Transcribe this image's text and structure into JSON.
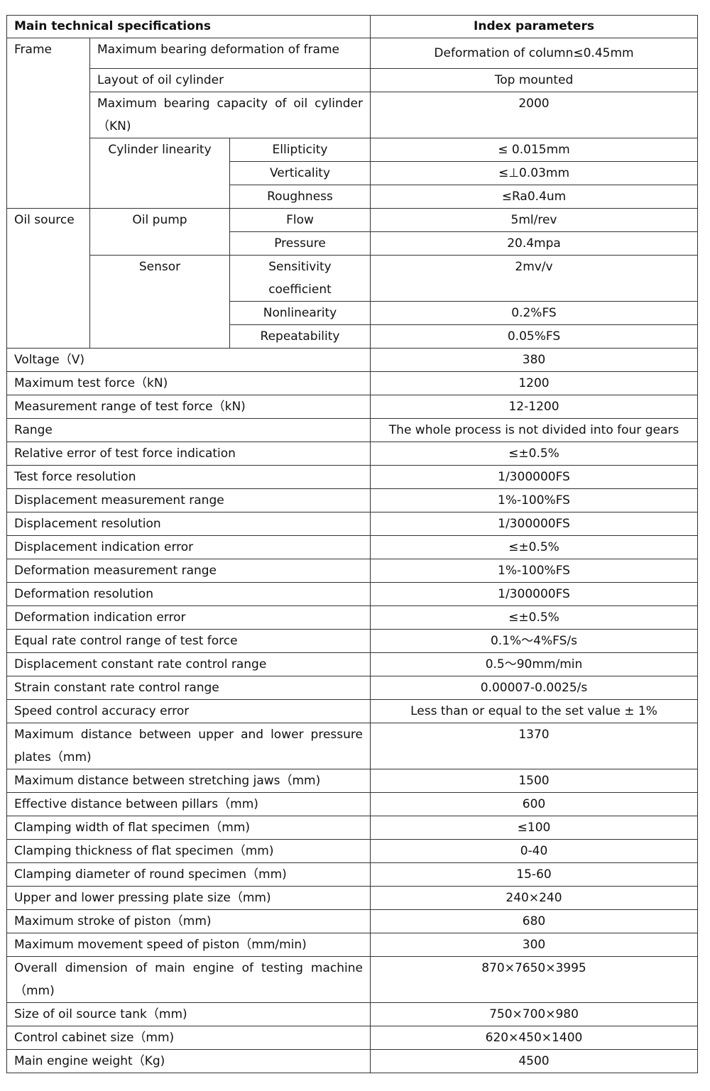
{
  "header": {
    "col1": "Main technical specifications",
    "col2": "Index parameters"
  },
  "frame": {
    "label": "Frame",
    "max_deformation": {
      "label": "Maximum bearing deformation of frame",
      "value": "Deformation of column≤0.45mm"
    },
    "layout": {
      "label": "Layout of oil cylinder",
      "value": "Top mounted"
    },
    "capacity": {
      "label": "Maximum bearing capacity of oil cylinder （KN)",
      "value": "2000"
    },
    "linearity": {
      "label": "Cylinder linearity",
      "items": [
        {
          "label": "Ellipticity",
          "value": "≤  0.015mm"
        },
        {
          "label": "Verticality",
          "value": "≤⊥0.03mm"
        },
        {
          "label": "Roughness",
          "value": "≤Ra0.4um"
        }
      ]
    }
  },
  "oil_source": {
    "label": "Oil source",
    "pump": {
      "label": "Oil pump",
      "items": [
        {
          "label": "Flow",
          "value": "5ml/rev"
        },
        {
          "label": "Pressure",
          "value": "20.4mpa"
        }
      ]
    },
    "sensor": {
      "label": "Sensor",
      "items": [
        {
          "label": "Sensitivity coefficient",
          "value": "2mv/v"
        },
        {
          "label": "Nonlinearity",
          "value": "0.2%FS"
        },
        {
          "label": "Repeatability",
          "value": "0.05%FS"
        }
      ]
    }
  },
  "rows": [
    {
      "label": "Voltage（V)",
      "value": "380"
    },
    {
      "label": "Maximum test force（kN)",
      "value": "1200"
    },
    {
      "label": "Measurement range of test force（kN)",
      "value": "12-1200"
    },
    {
      "label": "Range",
      "value": "The whole process is not divided into four gears"
    },
    {
      "label": "Relative error of test force indication",
      "value": "≤±0.5%"
    },
    {
      "label": "Test force resolution",
      "value": "1/300000FS"
    },
    {
      "label": "Displacement measurement range",
      "value": "1%-100%FS"
    },
    {
      "label": "Displacement resolution",
      "value": "1/300000FS"
    },
    {
      "label": "Displacement indication error",
      "value": "≤±0.5%"
    },
    {
      "label": "Deformation measurement range",
      "value": "1%-100%FS"
    },
    {
      "label": "Deformation resolution",
      "value": "1/300000FS"
    },
    {
      "label": "Deformation indication error",
      "value": "≤±0.5%"
    },
    {
      "label": "Equal rate control range of test force",
      "value": "0.1%～4%FS/s"
    },
    {
      "label": "Displacement constant rate control range",
      "value": "0.5～90mm/min"
    },
    {
      "label": "Strain constant rate control range",
      "value": "0.00007-0.0025/s"
    },
    {
      "label": "Speed control accuracy error",
      "value": "Less than or equal to the set value  ±  1%"
    },
    {
      "label": "Maximum distance between upper and lower pressure plates（mm)",
      "value": "1370",
      "tall": true
    },
    {
      "label": "Maximum distance between stretching jaws（mm)",
      "value": "1500"
    },
    {
      "label": "Effective distance between pillars（mm)",
      "value": "600"
    },
    {
      "label": "Clamping width of flat specimen（mm)",
      "value": "≤100"
    },
    {
      "label": "Clamping thickness of flat specimen（mm)",
      "value": "0-40"
    },
    {
      "label": "Clamping diameter of round specimen（mm)",
      "value": "15-60"
    },
    {
      "label": "Upper and lower pressing plate size（mm)",
      "value": "240×240"
    },
    {
      "label": "Maximum stroke of piston（mm)",
      "value": "680"
    },
    {
      "label": "Maximum movement speed of piston（mm/min)",
      "value": "300"
    },
    {
      "label": "Overall dimension of main engine of testing machine （mm)",
      "value": "870×7650×3995",
      "tall": true
    },
    {
      "label": "Size of oil source tank（mm)",
      "value": "750×700×980"
    },
    {
      "label": "Control cabinet size（mm)",
      "value": "620×450×1400"
    },
    {
      "label": "Main engine weight（Kg)",
      "value": "4500"
    }
  ]
}
